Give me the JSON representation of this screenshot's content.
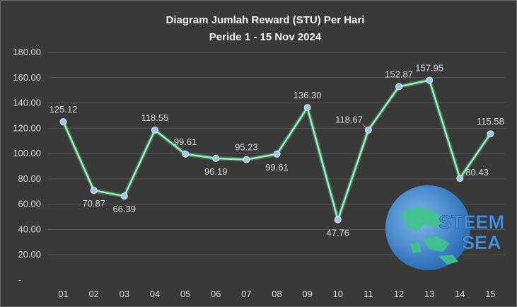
{
  "chart_data": {
    "type": "line",
    "title": "Diagram Jumlah Reward (STU) Per Hari",
    "subtitle": "Peride 1 - 15 Nov 2024",
    "xlabel": "",
    "ylabel": "",
    "categories": [
      "01",
      "02",
      "03",
      "04",
      "05",
      "06",
      "07",
      "08",
      "09",
      "10",
      "11",
      "12",
      "13",
      "14",
      "15"
    ],
    "series": [
      {
        "values": [
          125.12,
          70.87,
          66.39,
          118.55,
          99.61,
          96.19,
          95.23,
          99.61,
          136.3,
          47.76,
          118.67,
          152.87,
          157.95,
          80.43,
          115.58
        ]
      }
    ],
    "data_labels": [
      "125.12",
      "70.87",
      "66.39",
      "118.55",
      "99.61",
      "96.19",
      "95.23",
      "99.61",
      "136.30",
      "47.76",
      "118.67",
      "152.87",
      "157.95",
      "80.43",
      "115.58"
    ],
    "ylim": [
      0,
      180
    ],
    "y_ticks": [
      "-",
      "20.00",
      "40.00",
      "60.00",
      "80.00",
      "100.00",
      "120.00",
      "140.00",
      "160.00",
      "180.00"
    ],
    "grid": true,
    "legend": "none",
    "line_color": "#8ef5b8",
    "marker_color": "#9fc6e6",
    "background_color": "#393939",
    "grid_color": "#555555",
    "watermark_text": [
      "STEEM",
      "SEA"
    ],
    "watermark_color": "#4a90d9"
  }
}
